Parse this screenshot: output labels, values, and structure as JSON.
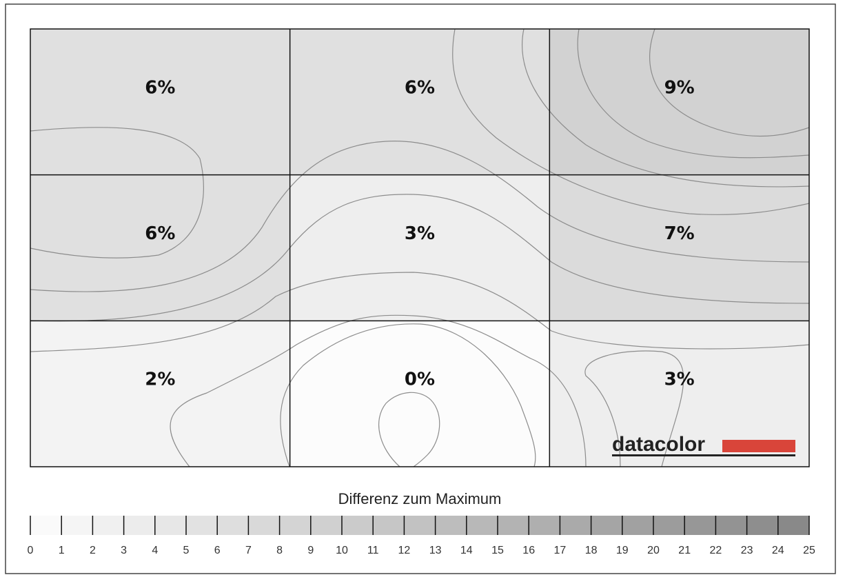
{
  "chart_data": {
    "type": "heatmap",
    "title": "Differenz zum Maximum",
    "values": [
      [
        6,
        6,
        9
      ],
      [
        6,
        3,
        7
      ],
      [
        2,
        0,
        3
      ]
    ],
    "value_labels": [
      [
        "6%",
        "6%",
        "9%"
      ],
      [
        "6%",
        "3%",
        "7%"
      ],
      [
        "2%",
        "0%",
        "3%"
      ]
    ],
    "clim": [
      0,
      25
    ],
    "cticks": [
      0,
      1,
      2,
      3,
      4,
      5,
      6,
      7,
      8,
      9,
      10,
      11,
      12,
      13,
      14,
      15,
      16,
      17,
      18,
      19,
      20,
      21,
      22,
      23,
      24,
      25
    ],
    "logo": "datacolor"
  }
}
